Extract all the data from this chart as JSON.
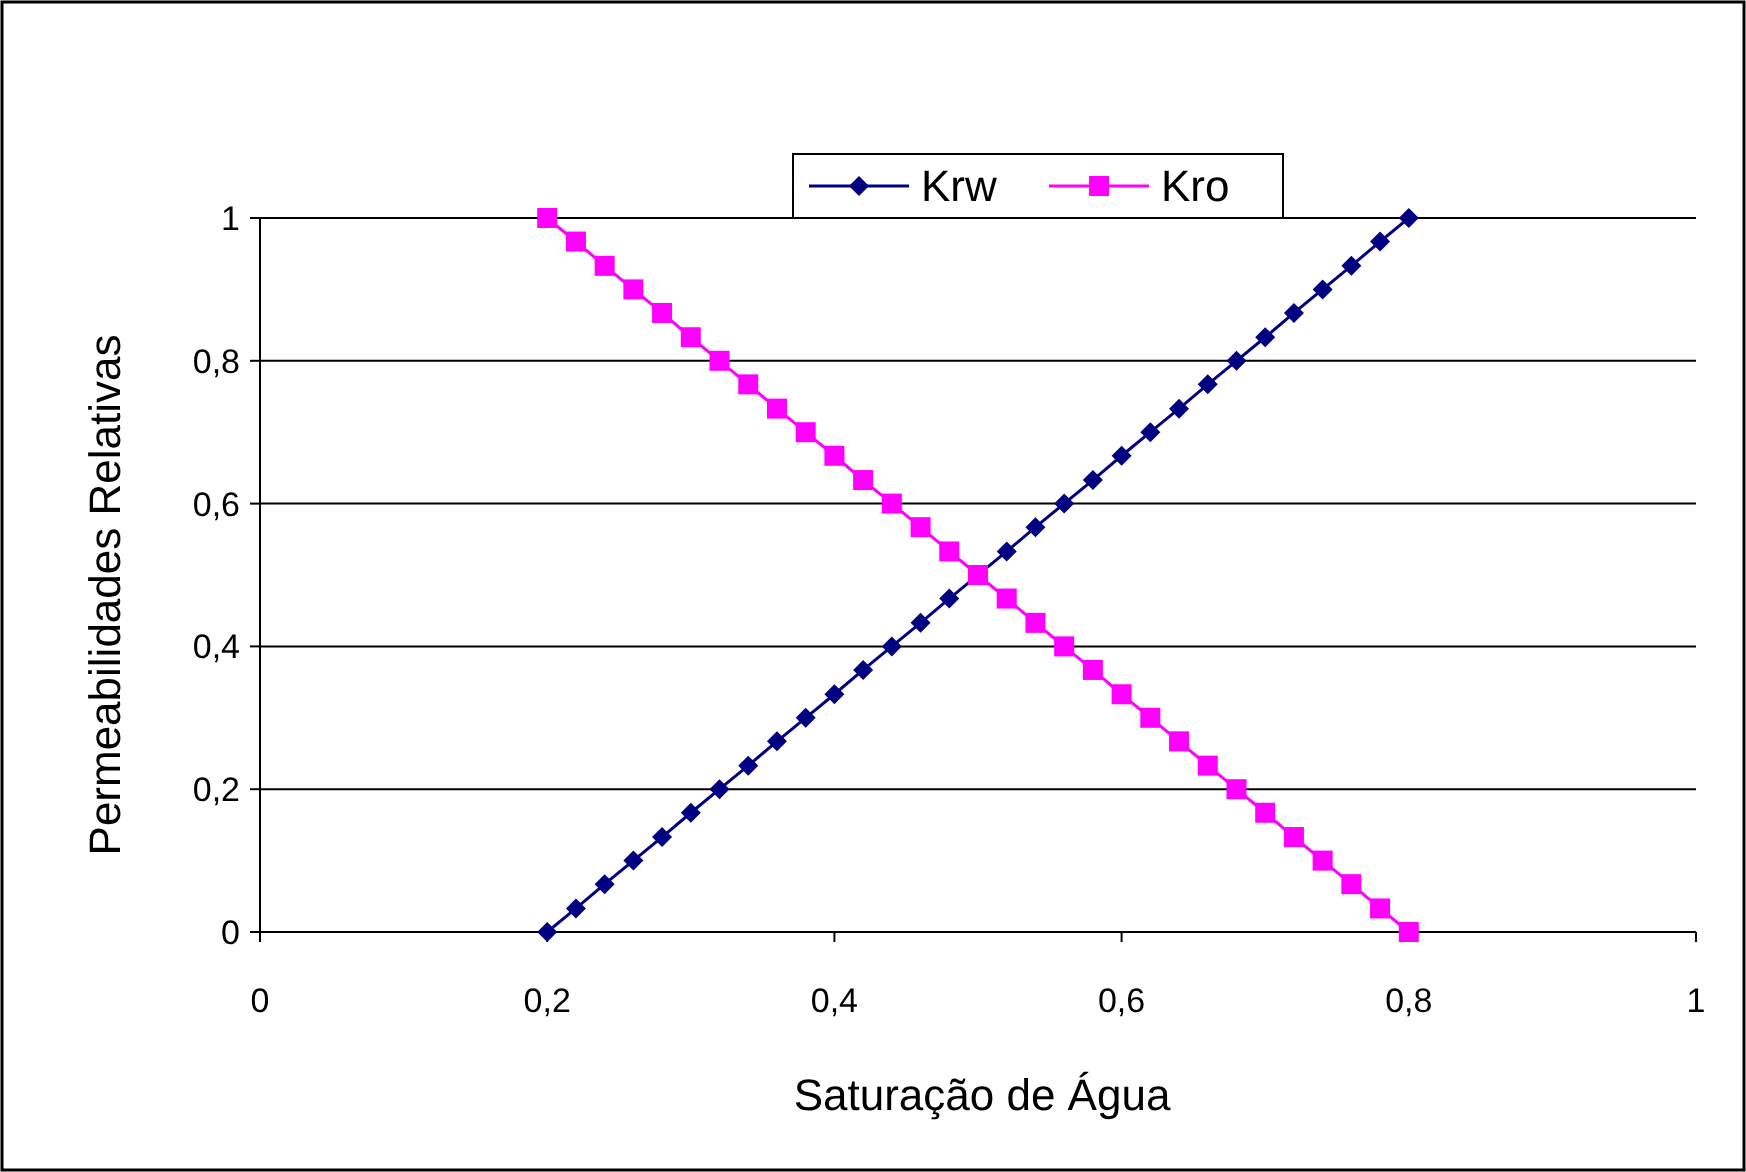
{
  "chart_data": {
    "type": "line",
    "xlabel": "Saturação de Água",
    "ylabel": "Permeabilidades Relativas",
    "x": [
      0.2,
      0.22,
      0.24,
      0.26,
      0.28,
      0.3,
      0.32,
      0.34,
      0.36,
      0.38,
      0.4,
      0.42,
      0.44,
      0.46,
      0.48,
      0.5,
      0.52,
      0.54,
      0.56,
      0.58,
      0.6,
      0.62,
      0.64,
      0.66,
      0.68,
      0.7,
      0.72,
      0.74,
      0.76,
      0.78,
      0.8
    ],
    "series": [
      {
        "name": "Krw",
        "color": "#000080",
        "marker": "diamond",
        "values": [
          0,
          0.033,
          0.067,
          0.1,
          0.133,
          0.167,
          0.2,
          0.233,
          0.267,
          0.3,
          0.333,
          0.367,
          0.4,
          0.433,
          0.467,
          null,
          0.533,
          0.567,
          0.6,
          0.633,
          0.667,
          0.7,
          0.733,
          0.767,
          0.8,
          0.833,
          0.867,
          0.9,
          0.933,
          0.967,
          1
        ]
      },
      {
        "name": "Kro",
        "color": "#ff00ff",
        "marker": "square",
        "values": [
          1,
          0.967,
          0.933,
          0.9,
          0.867,
          0.833,
          0.8,
          0.767,
          0.733,
          0.7,
          0.667,
          0.633,
          0.6,
          0.567,
          0.533,
          0.5,
          0.467,
          0.433,
          0.4,
          0.367,
          0.333,
          0.3,
          0.267,
          0.233,
          0.2,
          0.167,
          0.133,
          0.1,
          0.067,
          0.033,
          0
        ]
      }
    ],
    "xlim": [
      0,
      1
    ],
    "xticks": [
      0,
      {
        "value": 0.2,
        "label": "0,2"
      },
      {
        "value": 0.4,
        "label": "0,4"
      },
      {
        "value": 0.6,
        "label": "0,6"
      },
      {
        "value": 0.8,
        "label": "0,8"
      },
      1
    ],
    "ylim": [
      0,
      1
    ],
    "yticks": [
      0,
      {
        "value": 0.2,
        "label": "0,2"
      },
      {
        "value": 0.4,
        "label": "0,4"
      },
      {
        "value": 0.6,
        "label": "0,6"
      },
      {
        "value": 0.8,
        "label": "0,8"
      },
      1
    ],
    "grid": "y",
    "legend": "top",
    "line_style": "solid"
  }
}
